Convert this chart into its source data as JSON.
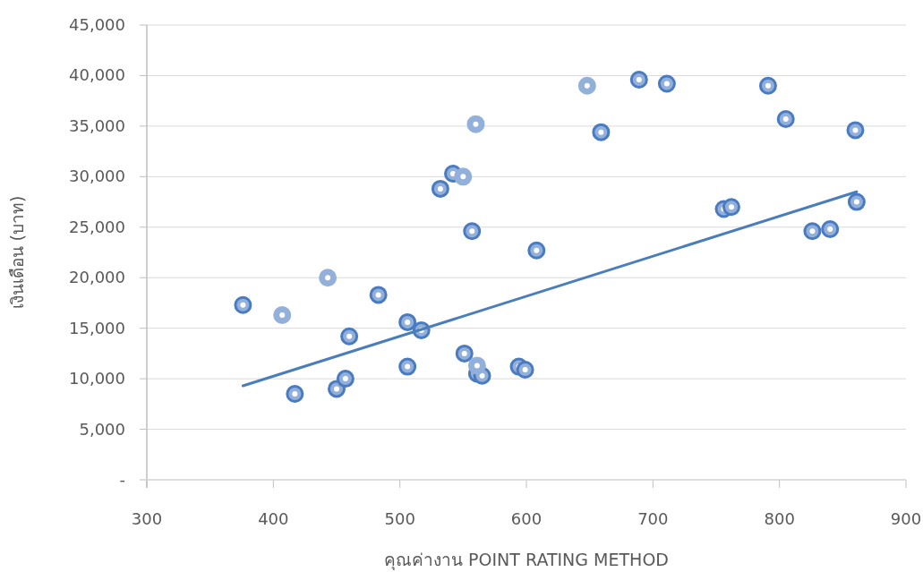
{
  "chart_data": {
    "type": "scatter",
    "xlabel": "คุณค่างาน POINT RATING METHOD",
    "ylabel": "เงินเดือน (บาท)",
    "xlim": [
      300,
      900
    ],
    "xticks": [
      300,
      400,
      500,
      600,
      700,
      800,
      900
    ],
    "ylim": [
      0,
      45000
    ],
    "yticks": [
      {
        "value": 0,
        "label": "-"
      },
      {
        "value": 5000,
        "label": "5,000"
      },
      {
        "value": 10000,
        "label": "10,000"
      },
      {
        "value": 15000,
        "label": "15,000"
      },
      {
        "value": 20000,
        "label": "20,000"
      },
      {
        "value": 25000,
        "label": "25,000"
      },
      {
        "value": 30000,
        "label": "30,000"
      },
      {
        "value": 35000,
        "label": "35,000"
      },
      {
        "value": 40000,
        "label": "40,000"
      },
      {
        "value": 45000,
        "label": "45,000"
      }
    ],
    "grid": "y",
    "marker": "circle",
    "series": [
      {
        "color": "#4a7bc1",
        "x": [
          376,
          417,
          450,
          457,
          460,
          483,
          506,
          517,
          506,
          532,
          542,
          557,
          551,
          561,
          565,
          594,
          599,
          608,
          659,
          689,
          711,
          756,
          762,
          791,
          805,
          826,
          840,
          860,
          861
        ],
        "values": [
          17300,
          8500,
          9000,
          10000,
          14200,
          18300,
          15600,
          14800,
          11200,
          28800,
          30300,
          24600,
          12500,
          10500,
          10300,
          11200,
          10900,
          22700,
          34400,
          39600,
          39200,
          26800,
          27000,
          39000,
          35700,
          24600,
          24800,
          34600,
          27500
        ]
      },
      {
        "color": "#93b0da",
        "x": [
          407,
          443,
          550,
          560,
          561,
          648
        ],
        "values": [
          16300,
          20000,
          30000,
          35200,
          11300,
          39000
        ]
      },
      {
        "type": "line",
        "marker": "none",
        "color": "#4a7ebb",
        "x": [
          376,
          861
        ],
        "values": [
          9300,
          28500
        ]
      }
    ]
  }
}
